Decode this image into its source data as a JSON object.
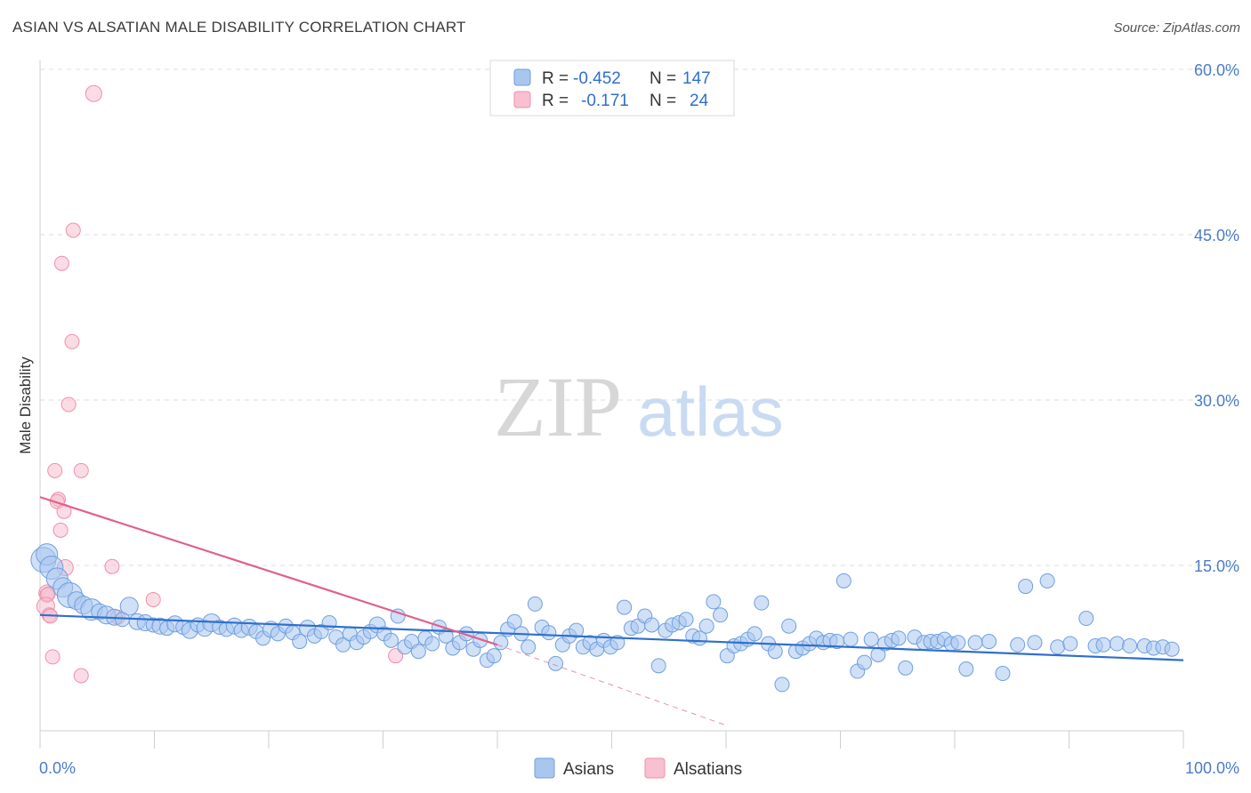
{
  "title": "ASIAN VS ALSATIAN MALE DISABILITY CORRELATION CHART",
  "source": "Source: ZipAtlas.com",
  "watermark": {
    "zip": "ZIP",
    "atlas": "atlas"
  },
  "colors": {
    "asian": "#a9c6ef",
    "asian_stroke": "#6f9fe0",
    "asian_line": "#2f6fce",
    "alsatian": "#f8c0d0",
    "alsatian_stroke": "#ee8fae",
    "alsatian_line": "#e0608c",
    "tick_text": "#4a7cc9",
    "grid": "#dcdcdc"
  },
  "legend": {
    "rows": [
      {
        "r_label": "R =",
        "r_value": "-0.452",
        "n_label": "N =",
        "n_value": "147"
      },
      {
        "r_label": "R =",
        "r_value": "-0.171",
        "n_label": "N =",
        "n_value": "24"
      }
    ]
  },
  "chart_data": {
    "type": "scatter",
    "ylabel": "Male Disability",
    "xlim": [
      0,
      100
    ],
    "ylim": [
      0,
      60
    ],
    "y_ticks": [
      15,
      30,
      45,
      60
    ],
    "y_tick_labels": [
      "15.0%",
      "30.0%",
      "45.0%",
      "60.0%"
    ],
    "x_tick_labels": [
      "0.0%",
      "100.0%"
    ],
    "grid": true,
    "legend_position": "top-center",
    "series": [
      {
        "name": "Asians",
        "r": -0.452,
        "n": 147,
        "trend": {
          "x": [
            0,
            100
          ],
          "y": [
            10.5,
            6.4
          ]
        },
        "points": [
          [
            0.3,
            15.5,
            14
          ],
          [
            0.6,
            16.0,
            12
          ],
          [
            1.0,
            14.8,
            13
          ],
          [
            1.5,
            13.8,
            12
          ],
          [
            2.0,
            13.0,
            11
          ],
          [
            2.6,
            12.3,
            14
          ],
          [
            3.2,
            11.8,
            10
          ],
          [
            3.8,
            11.4,
            10
          ],
          [
            4.5,
            11.0,
            12
          ],
          [
            5.2,
            10.8,
            9
          ],
          [
            5.8,
            10.5,
            10
          ],
          [
            6.5,
            10.3,
            9
          ],
          [
            7.2,
            10.1,
            8
          ],
          [
            7.8,
            11.3,
            10
          ],
          [
            8.5,
            9.9,
            9
          ],
          [
            9.2,
            9.8,
            9
          ],
          [
            9.9,
            9.6,
            8
          ],
          [
            10.5,
            9.5,
            9
          ],
          [
            11.1,
            9.3,
            8
          ],
          [
            11.8,
            9.7,
            9
          ],
          [
            12.5,
            9.4,
            8
          ],
          [
            13.1,
            9.1,
            9
          ],
          [
            13.8,
            9.6,
            8
          ],
          [
            14.4,
            9.3,
            9
          ],
          [
            15.0,
            9.8,
            10
          ],
          [
            15.7,
            9.4,
            8
          ],
          [
            16.3,
            9.2,
            8
          ],
          [
            17.0,
            9.5,
            9
          ],
          [
            17.6,
            9.1,
            8
          ],
          [
            18.3,
            9.4,
            9
          ],
          [
            18.9,
            9.0,
            8
          ],
          [
            19.5,
            8.4,
            8
          ],
          [
            20.2,
            9.2,
            9
          ],
          [
            20.8,
            8.8,
            8
          ],
          [
            21.5,
            9.5,
            8
          ],
          [
            22.1,
            8.9,
            8
          ],
          [
            22.7,
            8.1,
            8
          ],
          [
            23.4,
            9.3,
            9
          ],
          [
            24.0,
            8.6,
            8
          ],
          [
            24.6,
            9.0,
            8
          ],
          [
            25.3,
            9.8,
            8
          ],
          [
            25.9,
            8.5,
            8
          ],
          [
            26.5,
            7.8,
            8
          ],
          [
            27.1,
            8.8,
            8
          ],
          [
            27.7,
            8.0,
            8
          ],
          [
            28.3,
            8.5,
            8
          ],
          [
            28.9,
            9.0,
            8
          ],
          [
            29.5,
            9.6,
            9
          ],
          [
            30.1,
            8.8,
            8
          ],
          [
            30.7,
            8.2,
            8
          ],
          [
            31.3,
            10.4,
            8
          ],
          [
            31.9,
            7.6,
            8
          ],
          [
            32.5,
            8.1,
            8
          ],
          [
            33.1,
            7.2,
            8
          ],
          [
            33.7,
            8.4,
            8
          ],
          [
            34.3,
            7.9,
            8
          ],
          [
            34.9,
            9.4,
            8
          ],
          [
            35.5,
            8.6,
            8
          ],
          [
            36.1,
            7.5,
            8
          ],
          [
            36.7,
            8.0,
            8
          ],
          [
            37.3,
            8.8,
            8
          ],
          [
            37.9,
            7.4,
            8
          ],
          [
            38.5,
            8.2,
            8
          ],
          [
            39.1,
            6.4,
            8
          ],
          [
            39.7,
            6.8,
            8
          ],
          [
            40.3,
            8.0,
            8
          ],
          [
            40.9,
            9.2,
            8
          ],
          [
            41.5,
            9.9,
            8
          ],
          [
            42.1,
            8.8,
            8
          ],
          [
            42.7,
            7.6,
            8
          ],
          [
            43.3,
            11.5,
            8
          ],
          [
            43.9,
            9.4,
            8
          ],
          [
            44.5,
            8.9,
            8
          ],
          [
            45.1,
            6.1,
            8
          ],
          [
            45.7,
            7.8,
            8
          ],
          [
            46.3,
            8.6,
            8
          ],
          [
            46.9,
            9.1,
            8
          ],
          [
            47.5,
            7.6,
            8
          ],
          [
            48.1,
            8.0,
            8
          ],
          [
            48.7,
            7.4,
            8
          ],
          [
            49.3,
            8.2,
            8
          ],
          [
            49.9,
            7.6,
            8
          ],
          [
            50.5,
            8.0,
            8
          ],
          [
            51.1,
            11.2,
            8
          ],
          [
            51.7,
            9.3,
            8
          ],
          [
            52.3,
            9.5,
            8
          ],
          [
            52.9,
            10.4,
            8
          ],
          [
            53.5,
            9.6,
            8
          ],
          [
            54.1,
            5.9,
            8
          ],
          [
            54.7,
            9.1,
            8
          ],
          [
            55.3,
            9.6,
            8
          ],
          [
            55.9,
            9.8,
            8
          ],
          [
            56.5,
            10.1,
            8
          ],
          [
            57.1,
            8.6,
            8
          ],
          [
            57.7,
            8.4,
            8
          ],
          [
            58.3,
            9.5,
            8
          ],
          [
            58.9,
            11.7,
            8
          ],
          [
            59.5,
            10.5,
            8
          ],
          [
            60.1,
            6.8,
            8
          ],
          [
            60.7,
            7.7,
            8
          ],
          [
            61.3,
            7.9,
            8
          ],
          [
            61.9,
            8.3,
            8
          ],
          [
            62.5,
            8.8,
            8
          ],
          [
            63.1,
            11.6,
            8
          ],
          [
            63.7,
            7.9,
            8
          ],
          [
            64.3,
            7.2,
            8
          ],
          [
            64.9,
            4.2,
            8
          ],
          [
            65.5,
            9.5,
            8
          ],
          [
            66.1,
            7.2,
            8
          ],
          [
            66.7,
            7.5,
            8
          ],
          [
            67.3,
            7.9,
            8
          ],
          [
            67.9,
            8.4,
            8
          ],
          [
            68.5,
            8.0,
            8
          ],
          [
            69.1,
            8.2,
            8
          ],
          [
            69.7,
            8.1,
            8
          ],
          [
            70.3,
            13.6,
            8
          ],
          [
            70.9,
            8.3,
            8
          ],
          [
            71.5,
            5.4,
            8
          ],
          [
            72.1,
            6.2,
            8
          ],
          [
            72.7,
            8.3,
            8
          ],
          [
            73.3,
            6.9,
            8
          ],
          [
            73.9,
            7.9,
            8
          ],
          [
            74.5,
            8.2,
            8
          ],
          [
            75.1,
            8.4,
            8
          ],
          [
            75.7,
            5.7,
            8
          ],
          [
            76.5,
            8.5,
            8
          ],
          [
            77.3,
            8.0,
            8
          ],
          [
            77.9,
            8.1,
            8
          ],
          [
            78.5,
            8.1,
            8
          ],
          [
            79.1,
            8.3,
            8
          ],
          [
            79.7,
            7.9,
            8
          ],
          [
            80.3,
            8.0,
            8
          ],
          [
            81.0,
            5.6,
            8
          ],
          [
            81.8,
            8.0,
            8
          ],
          [
            83.0,
            8.1,
            8
          ],
          [
            84.2,
            5.2,
            8
          ],
          [
            85.5,
            7.8,
            8
          ],
          [
            86.2,
            13.1,
            8
          ],
          [
            87.0,
            8.0,
            8
          ],
          [
            88.1,
            13.6,
            8
          ],
          [
            89.0,
            7.6,
            8
          ],
          [
            90.1,
            7.9,
            8
          ],
          [
            91.5,
            10.2,
            8
          ],
          [
            92.3,
            7.7,
            8
          ],
          [
            93.0,
            7.8,
            8
          ],
          [
            94.2,
            7.9,
            8
          ],
          [
            95.3,
            7.7,
            8
          ],
          [
            96.6,
            7.7,
            8
          ],
          [
            97.4,
            7.5,
            8
          ],
          [
            98.2,
            7.6,
            8
          ],
          [
            99.0,
            7.4,
            8
          ]
        ]
      },
      {
        "name": "Alsatians",
        "r": -0.171,
        "n": 24,
        "trend": {
          "x": [
            0,
            40
          ],
          "y": [
            21.2,
            7.8
          ]
        },
        "trend_extension": {
          "x": [
            40,
            60
          ],
          "y": [
            7.8,
            0.5
          ]
        },
        "points": [
          [
            4.7,
            57.8,
            9
          ],
          [
            2.9,
            45.4,
            8
          ],
          [
            1.9,
            42.4,
            8
          ],
          [
            2.8,
            35.3,
            8
          ],
          [
            2.5,
            29.6,
            8
          ],
          [
            1.3,
            23.6,
            8
          ],
          [
            3.6,
            23.6,
            8
          ],
          [
            1.6,
            21.0,
            8
          ],
          [
            1.5,
            20.8,
            8
          ],
          [
            2.1,
            19.9,
            8
          ],
          [
            1.8,
            18.2,
            8
          ],
          [
            6.3,
            14.9,
            8
          ],
          [
            2.2,
            14.8,
            9
          ],
          [
            0.6,
            12.5,
            9
          ],
          [
            0.6,
            12.3,
            8
          ],
          [
            0.7,
            12.4,
            8
          ],
          [
            9.9,
            11.9,
            8
          ],
          [
            0.5,
            11.3,
            10
          ],
          [
            0.8,
            10.5,
            8
          ],
          [
            0.9,
            10.4,
            8
          ],
          [
            6.8,
            10.3,
            8
          ],
          [
            31.1,
            6.8,
            8
          ],
          [
            1.1,
            6.7,
            8
          ],
          [
            3.6,
            5.0,
            8
          ]
        ]
      }
    ]
  },
  "bottom_legend": [
    {
      "label": "Asians"
    },
    {
      "label": "Alsatians"
    }
  ]
}
